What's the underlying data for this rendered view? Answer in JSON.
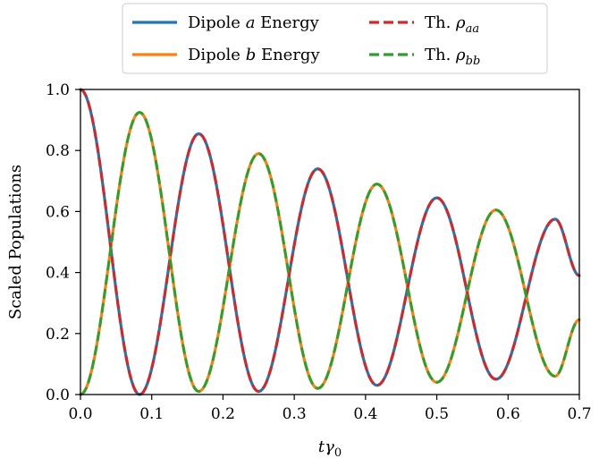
{
  "chart_data": {
    "type": "line",
    "xlabel": "tγ₀",
    "ylabel": "Scaled Populations",
    "xlim": [
      0.0,
      0.7
    ],
    "ylim": [
      0.0,
      1.0
    ],
    "xticks": [
      "0.0",
      "0.1",
      "0.2",
      "0.3",
      "0.4",
      "0.5",
      "0.6",
      "0.7"
    ],
    "yticks": [
      "0.0",
      "0.2",
      "0.4",
      "0.6",
      "0.8",
      "1.0"
    ],
    "grid": false,
    "legend_position": "top-center",
    "legend_entries": [
      {
        "text": "Dipole a Energy",
        "prefix": "Dipole ",
        "italic": "a",
        "suffix": " Energy",
        "color": "#1f77b4",
        "style": "solid"
      },
      {
        "text": "Dipole b Energy",
        "prefix": "Dipole ",
        "italic": "b",
        "suffix": " Energy",
        "color": "#ff7f0e",
        "style": "solid"
      },
      {
        "text": "Th. ρaa",
        "prefix": "Th. ",
        "italic": "ρ",
        "sub": "aa",
        "color": "#d62728",
        "style": "dashed"
      },
      {
        "text": "Th. ρbb",
        "prefix": "Th. ",
        "italic": "ρ",
        "sub": "bb",
        "color": "#2ca02c",
        "style": "dashed"
      }
    ],
    "series": [
      {
        "name": "Dipole a Energy",
        "color": "#1f77b4",
        "style": "solid",
        "x": [
          0.0,
          0.083,
          0.166,
          0.25,
          0.333,
          0.416,
          0.5,
          0.583,
          0.666,
          0.7
        ],
        "y": [
          1.0,
          0.0,
          0.855,
          0.01,
          0.74,
          0.03,
          0.645,
          0.05,
          0.575,
          0.39
        ]
      },
      {
        "name": "Dipole b Energy",
        "color": "#ff7f0e",
        "style": "solid",
        "x": [
          0.0,
          0.083,
          0.166,
          0.25,
          0.333,
          0.416,
          0.5,
          0.583,
          0.666,
          0.7
        ],
        "y": [
          0.0,
          0.925,
          0.01,
          0.79,
          0.02,
          0.69,
          0.04,
          0.605,
          0.06,
          0.245
        ]
      },
      {
        "name": "Th. ρaa",
        "color": "#d62728",
        "style": "dashed",
        "x": [
          0.0,
          0.083,
          0.166,
          0.25,
          0.333,
          0.416,
          0.5,
          0.583,
          0.666,
          0.7
        ],
        "y": [
          1.0,
          0.0,
          0.855,
          0.01,
          0.74,
          0.03,
          0.645,
          0.05,
          0.575,
          0.39
        ]
      },
      {
        "name": "Th. ρbb",
        "color": "#2ca02c",
        "style": "dashed",
        "x": [
          0.0,
          0.083,
          0.166,
          0.25,
          0.333,
          0.416,
          0.5,
          0.583,
          0.666,
          0.7
        ],
        "y": [
          0.0,
          0.925,
          0.01,
          0.79,
          0.02,
          0.69,
          0.04,
          0.605,
          0.06,
          0.245
        ]
      }
    ]
  }
}
